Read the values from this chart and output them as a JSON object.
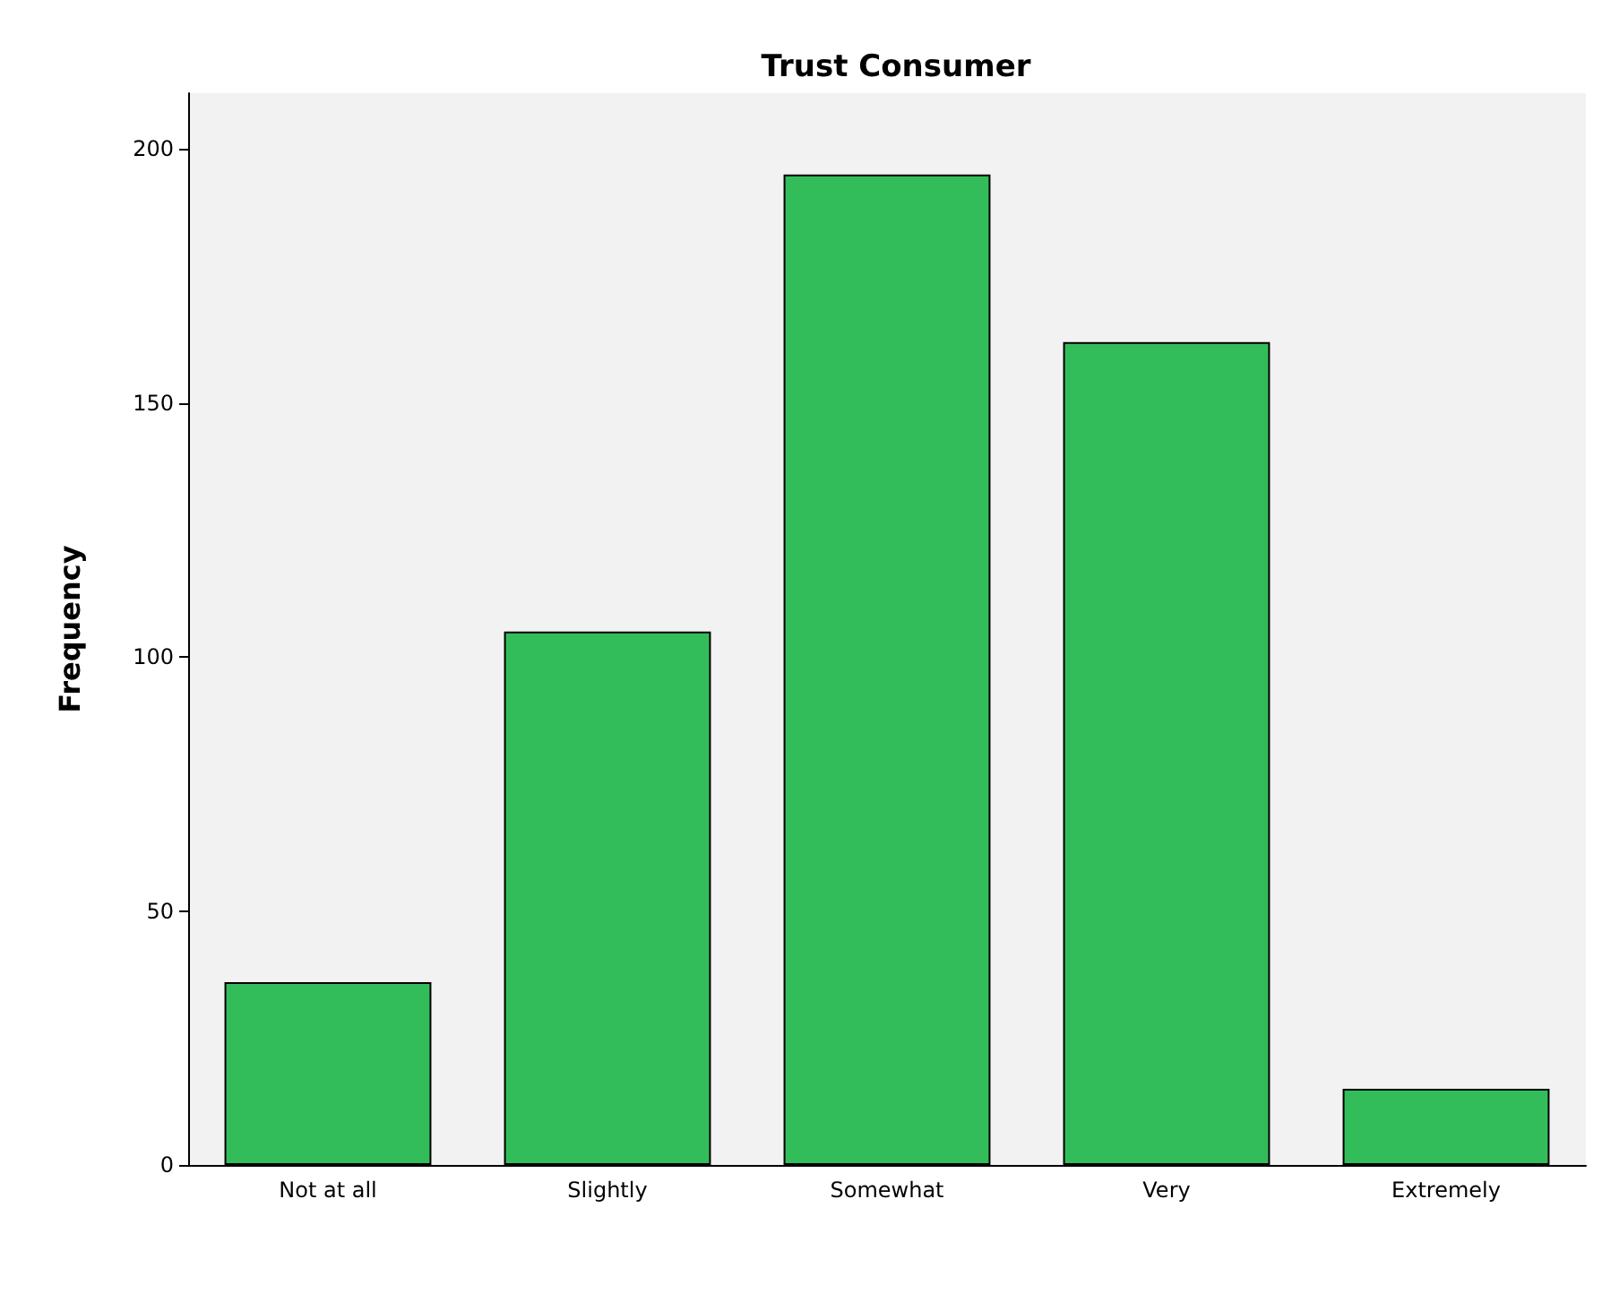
{
  "chart_data": {
    "type": "bar",
    "title": "Trust Consumer",
    "ylabel": "Frequency",
    "categories": [
      "Not at all",
      "Slightly",
      "Somewhat",
      "Very",
      "Extremely"
    ],
    "values": [
      36,
      105,
      195,
      162,
      15
    ],
    "color": "#33bd5a",
    "ylim": [
      0,
      211
    ],
    "yticks": [
      0,
      50,
      100,
      150,
      200
    ],
    "grid": false
  }
}
